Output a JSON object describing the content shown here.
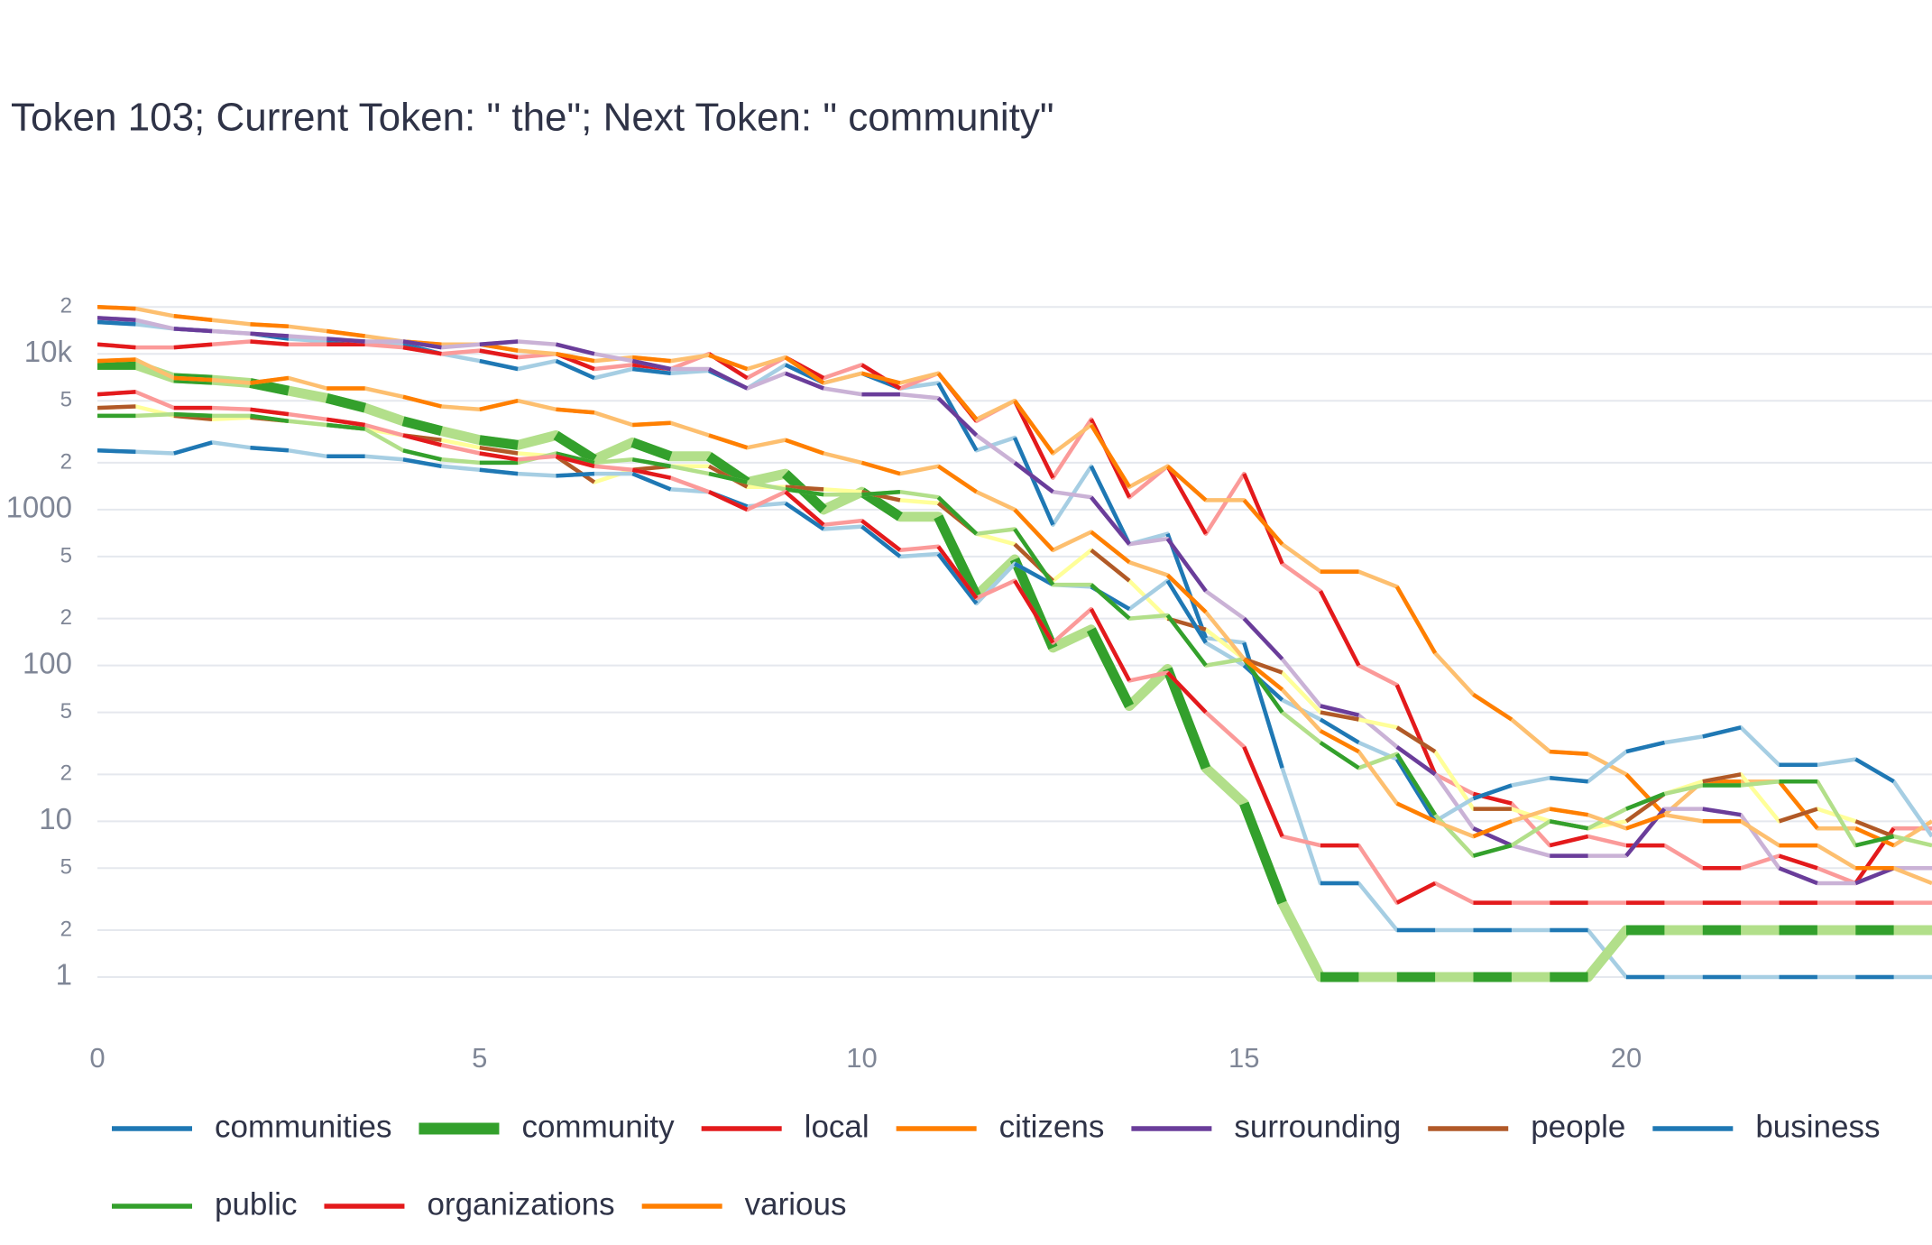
{
  "chart_data": {
    "type": "line",
    "title": "Token 103; Current Token: \" the\"; Next Token: \" community\"",
    "x": [
      0,
      0.5,
      1,
      1.5,
      2,
      2.5,
      3,
      3.5,
      4,
      4.5,
      5,
      5.5,
      6,
      6.5,
      7,
      7.5,
      8,
      8.5,
      9,
      9.5,
      10,
      10.5,
      11,
      11.5,
      12,
      12.5,
      13,
      13.5,
      14,
      14.5,
      15,
      15.5,
      16,
      16.5,
      17,
      17.5,
      18,
      18.5,
      19,
      19.5,
      20,
      20.5,
      21,
      21.5,
      22,
      22.5,
      23,
      23.5,
      24
    ],
    "xlim": [
      0,
      24
    ],
    "xticks": [
      0,
      5,
      10,
      15,
      20
    ],
    "log_y": true,
    "ylim": [
      0.5,
      28000
    ],
    "yticks": [
      1,
      2,
      5,
      10,
      {
        "value": 20,
        "label": "2"
      },
      {
        "value": 50,
        "label": "5"
      },
      100,
      {
        "value": 200,
        "label": "2"
      },
      {
        "value": 500,
        "label": "5"
      },
      1000,
      {
        "value": 2000,
        "label": "2"
      },
      {
        "value": 5000,
        "label": "5"
      },
      {
        "value": 10000,
        "label": "10k"
      },
      {
        "value": 20000,
        "label": "2"
      }
    ],
    "grid": true,
    "series": [
      {
        "name": "communities",
        "color": "#1f78b4",
        "light_color": "#a6cee3",
        "values": [
          16000,
          15500,
          14500,
          14000,
          13500,
          12500,
          12000,
          12000,
          11500,
          10000,
          9000,
          8000,
          9000,
          7000,
          8000,
          7500,
          7800,
          6000,
          8500,
          6500,
          7500,
          6000,
          6500,
          2400,
          2900,
          800,
          1900,
          600,
          700,
          150,
          140,
          22,
          4,
          4,
          2,
          2,
          2,
          2,
          2,
          2,
          1,
          1,
          1,
          1,
          1,
          1,
          1,
          1,
          1
        ]
      },
      {
        "name": "community",
        "color": "#33a02c",
        "light_color": "#b2df8a",
        "emphasis": true,
        "values": [
          8500,
          8500,
          7000,
          6800,
          6500,
          5800,
          5200,
          4500,
          3700,
          3200,
          2800,
          2600,
          3000,
          2100,
          2700,
          2200,
          2200,
          1500,
          1700,
          1000,
          1300,
          900,
          900,
          280,
          480,
          130,
          170,
          55,
          95,
          22,
          13,
          3,
          1,
          1,
          1,
          1,
          1,
          1,
          1,
          1,
          2,
          2,
          2,
          2,
          2,
          2,
          2,
          2,
          2
        ]
      },
      {
        "name": "local",
        "color": "#e31a1c",
        "light_color": "#fb9a99",
        "values": [
          11500,
          11000,
          11000,
          11500,
          12000,
          11500,
          11500,
          11500,
          11000,
          10000,
          10500,
          9500,
          10000,
          8000,
          8500,
          8000,
          10000,
          7000,
          9500,
          7000,
          8500,
          6000,
          7500,
          3700,
          5000,
          1600,
          3800,
          1200,
          1900,
          700,
          1700,
          450,
          300,
          100,
          75,
          20,
          15,
          13,
          7,
          8,
          7,
          7,
          5,
          5,
          6,
          5,
          4,
          9,
          9
        ]
      },
      {
        "name": "citizens",
        "color": "#ff7f00",
        "light_color": "#fdbf6f",
        "values": [
          20000,
          19500,
          17500,
          16500,
          15500,
          15000,
          14000,
          13000,
          12000,
          11500,
          11500,
          10500,
          10000,
          9000,
          9500,
          9000,
          9800,
          8000,
          9500,
          6500,
          7500,
          6500,
          7500,
          3800,
          5000,
          2300,
          3500,
          1400,
          1900,
          1150,
          1150,
          600,
          400,
          400,
          320,
          120,
          65,
          45,
          28,
          27,
          20,
          11,
          18,
          18,
          18,
          9,
          9,
          7,
          10
        ]
      },
      {
        "name": "surrounding",
        "color": "#6a3d9a",
        "light_color": "#cab2d6",
        "values": [
          17000,
          16500,
          14500,
          14000,
          13500,
          13000,
          12500,
          12000,
          12000,
          11000,
          11500,
          12000,
          11500,
          10000,
          9000,
          8000,
          8000,
          6000,
          7500,
          6000,
          5500,
          5500,
          5200,
          3000,
          2000,
          1300,
          1200,
          600,
          650,
          300,
          200,
          110,
          55,
          48,
          30,
          20,
          9,
          7,
          6,
          6,
          6,
          12,
          12,
          11,
          5,
          4,
          4,
          5,
          5
        ]
      },
      {
        "name": "people",
        "color": "#b15928",
        "light_color": "#ffff99",
        "values": [
          4500,
          4600,
          4000,
          3800,
          3900,
          3700,
          3500,
          3300,
          3000,
          2800,
          2500,
          2300,
          2200,
          1500,
          1800,
          1900,
          1900,
          1400,
          1400,
          1350,
          1300,
          1150,
          1100,
          700,
          600,
          350,
          550,
          350,
          200,
          170,
          110,
          90,
          50,
          45,
          40,
          28,
          12,
          12,
          10,
          9,
          10,
          15,
          18,
          20,
          10,
          12,
          10,
          8,
          7
        ]
      },
      {
        "name": "business",
        "color": "#1f78b4",
        "light_color": "#a6cee3",
        "values": [
          2400,
          2350,
          2300,
          2700,
          2500,
          2400,
          2200,
          2200,
          2100,
          1900,
          1800,
          1700,
          1650,
          1700,
          1700,
          1350,
          1300,
          1050,
          1100,
          750,
          780,
          500,
          520,
          250,
          450,
          330,
          320,
          230,
          350,
          140,
          100,
          60,
          45,
          32,
          25,
          10,
          14,
          17,
          19,
          18,
          28,
          32,
          35,
          40,
          23,
          23,
          25,
          18,
          8
        ]
      },
      {
        "name": "public",
        "color": "#33a02c",
        "light_color": "#b2df8a",
        "values": [
          4000,
          4000,
          4100,
          4000,
          4000,
          3700,
          3500,
          3300,
          2400,
          2100,
          2000,
          2000,
          2300,
          2000,
          2100,
          1900,
          1700,
          1500,
          1350,
          1250,
          1250,
          1300,
          1200,
          700,
          750,
          330,
          330,
          200,
          210,
          100,
          110,
          50,
          32,
          22,
          27,
          11,
          6,
          7,
          10,
          9,
          12,
          15,
          17,
          17,
          18,
          18,
          7,
          8,
          7
        ]
      },
      {
        "name": "organizations",
        "color": "#e31a1c",
        "light_color": "#fb9a99",
        "values": [
          5500,
          5700,
          4500,
          4500,
          4400,
          4100,
          3800,
          3500,
          3000,
          2600,
          2300,
          2100,
          2200,
          1900,
          1800,
          1600,
          1300,
          1000,
          1300,
          800,
          850,
          550,
          580,
          270,
          350,
          140,
          230,
          80,
          90,
          50,
          30,
          8,
          7,
          7,
          3,
          4,
          3,
          3,
          3,
          3,
          3,
          3,
          3,
          3,
          3,
          3,
          3,
          3,
          3
        ]
      },
      {
        "name": "various",
        "color": "#ff7f00",
        "light_color": "#fdbf6f",
        "values": [
          9000,
          9200,
          7000,
          6800,
          6500,
          7000,
          6000,
          6000,
          5300,
          4600,
          4400,
          5000,
          4400,
          4200,
          3500,
          3600,
          3000,
          2500,
          2800,
          2300,
          2000,
          1700,
          1900,
          1300,
          1000,
          550,
          720,
          460,
          380,
          220,
          110,
          70,
          38,
          28,
          13,
          10,
          8,
          10,
          12,
          11,
          9,
          11,
          10,
          10,
          7,
          7,
          5,
          5,
          4
        ]
      }
    ]
  }
}
